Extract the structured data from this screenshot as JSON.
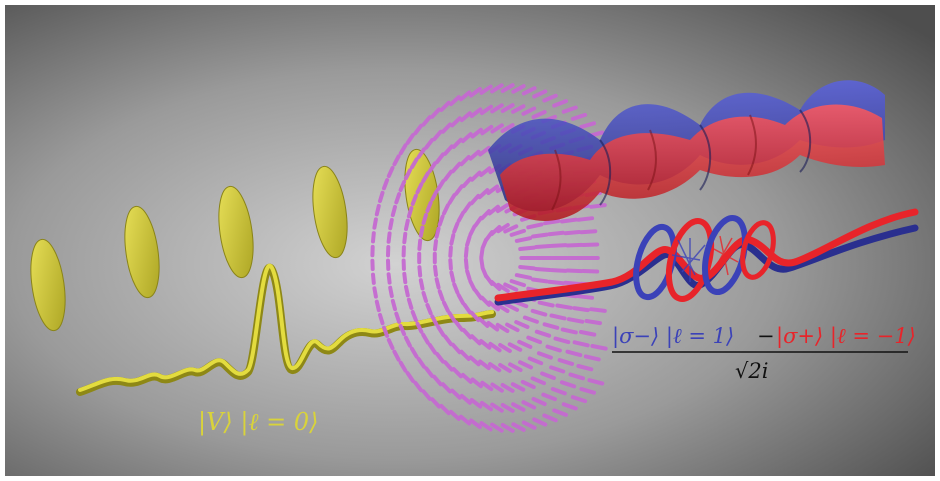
{
  "scene": {
    "label_input": "|V⟩ |ℓ = 0⟩",
    "label_output": {
      "term_minus": "|σ−⟩ |ℓ = 1⟩",
      "operator": "−",
      "term_plus": "|σ+⟩ |ℓ = −1⟩",
      "denominator": "√2i"
    },
    "colors": {
      "background_light": "#c8c8c8",
      "background_dark": "#4a4a4a",
      "yellow": "#d9d33a",
      "blue": "#3b42b8",
      "red": "#e8242a",
      "magenta": "#c56ad1",
      "black": "#111111"
    },
    "icons": [
      "polarization-ellipse-icon",
      "q-plate-icon",
      "helical-wavefront-icon"
    ]
  }
}
